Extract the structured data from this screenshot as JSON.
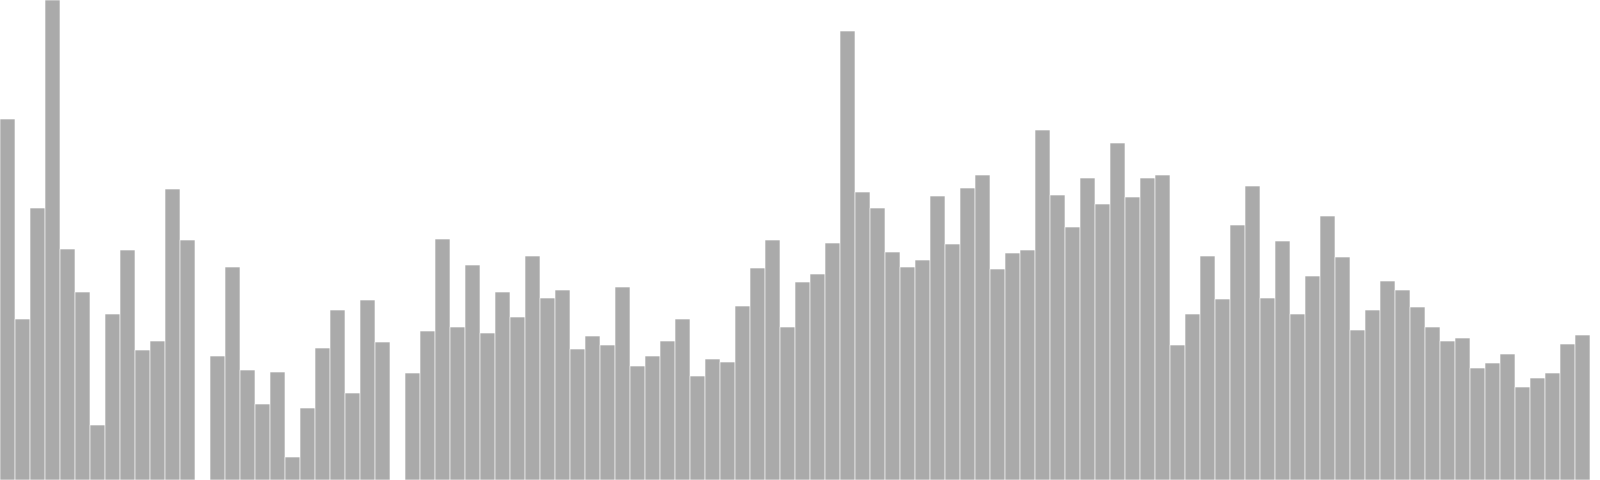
{
  "chart_data": {
    "type": "bar",
    "title": "",
    "xlabel": "",
    "ylabel": "",
    "grid": false,
    "legend": "none",
    "bar_color": "#aaaaaa",
    "ylim": [
      0,
      480
    ],
    "values": [
      361,
      161,
      272,
      480,
      231,
      188,
      55,
      166,
      230,
      130,
      139,
      291,
      240,
      0,
      124,
      213,
      110,
      76,
      108,
      23,
      72,
      132,
      170,
      87,
      180,
      138,
      0,
      107,
      149,
      241,
      153,
      215,
      147,
      188,
      163,
      224,
      182,
      190,
      131,
      144,
      135,
      193,
      114,
      124,
      139,
      161,
      104,
      121,
      118,
      174,
      212,
      240,
      153,
      198,
      206,
      237,
      449,
      288,
      272,
      228,
      213,
      220,
      284,
      236,
      292,
      305,
      211,
      227,
      230,
      350,
      285,
      253,
      302,
      276,
      337,
      283,
      302,
      305,
      135,
      166,
      224,
      181,
      255,
      294,
      182,
      239,
      166,
      204,
      264,
      223,
      150,
      170,
      199,
      190,
      173,
      153,
      139,
      142,
      112,
      117,
      126,
      93,
      102,
      107,
      136,
      145
    ]
  }
}
